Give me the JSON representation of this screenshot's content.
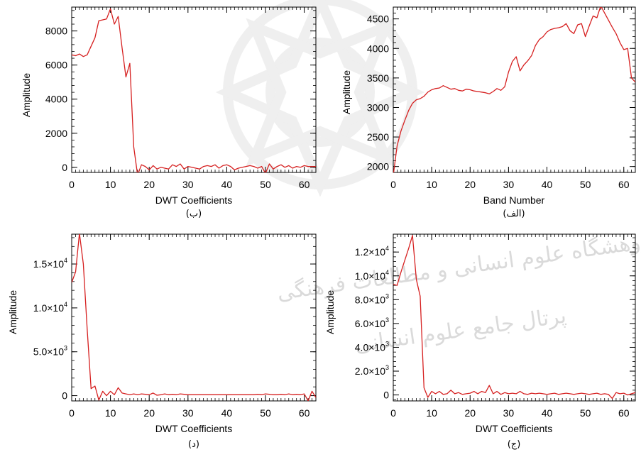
{
  "figure": {
    "panels": [
      {
        "id": "b",
        "caption": "(ب)"
      },
      {
        "id": "alef",
        "caption": "(الف)"
      },
      {
        "id": "d",
        "caption": "(د)"
      },
      {
        "id": "jim",
        "caption": "(ج)"
      }
    ],
    "watermark_text": [
      "پژوهشگاه علوم انسانی و مطالعات فرهنگی",
      "پرتال جامع علوم انسانی"
    ]
  },
  "chart_data": [
    {
      "id": "b",
      "type": "line",
      "xlabel": "DWT Coefficients",
      "ylabel": "Amplitude",
      "xlim": [
        0,
        63
      ],
      "ylim": [
        -300,
        9400
      ],
      "x_ticks": [
        0,
        10,
        20,
        30,
        40,
        50,
        60
      ],
      "y_ticks": [
        {
          "value": 0,
          "label": "0"
        },
        {
          "value": 2000,
          "label": "2000"
        },
        {
          "value": 4000,
          "label": "4000"
        },
        {
          "value": 6000,
          "label": "6000"
        },
        {
          "value": 8000,
          "label": "8000"
        }
      ],
      "line_color": "#d62020",
      "grid": false,
      "series": [
        {
          "x": [
            0,
            1,
            2,
            3,
            4,
            5,
            6,
            7,
            8,
            9,
            10,
            11,
            12,
            13,
            14,
            15,
            16,
            17,
            18,
            19,
            20,
            21,
            22,
            23,
            24,
            25,
            26,
            27,
            28,
            29,
            30,
            31,
            32,
            33,
            34,
            35,
            36,
            37,
            38,
            39,
            40,
            41,
            42,
            43,
            44,
            45,
            46,
            47,
            48,
            49,
            50,
            51,
            52,
            53,
            54,
            55,
            56,
            57,
            58,
            59,
            60,
            61,
            62,
            63
          ],
          "y": [
            6600,
            6550,
            6650,
            6500,
            6600,
            7100,
            7600,
            8600,
            8650,
            8700,
            9300,
            8400,
            8850,
            7000,
            5300,
            6100,
            1200,
            -450,
            150,
            50,
            -150,
            100,
            -100,
            0,
            -50,
            -100,
            150,
            50,
            200,
            -100,
            50,
            0,
            -50,
            -100,
            50,
            100,
            50,
            150,
            -50,
            100,
            150,
            50,
            -150,
            -50,
            0,
            50,
            100,
            50,
            -50,
            50,
            -350,
            200,
            -100,
            50,
            150,
            0,
            100,
            -50,
            50,
            0,
            100,
            50,
            50,
            50
          ]
        }
      ]
    },
    {
      "id": "alef",
      "type": "line",
      "xlabel": "Band Number",
      "ylabel": "Amplitude",
      "xlim": [
        0,
        63
      ],
      "ylim": [
        1900,
        4700
      ],
      "x_ticks": [
        0,
        10,
        20,
        30,
        40,
        50,
        60
      ],
      "y_ticks": [
        {
          "value": 2000,
          "label": "2000"
        },
        {
          "value": 2500,
          "label": "2500"
        },
        {
          "value": 3000,
          "label": "3000"
        },
        {
          "value": 3500,
          "label": "3500"
        },
        {
          "value": 4000,
          "label": "4000"
        },
        {
          "value": 4500,
          "label": "4500"
        }
      ],
      "line_color": "#d62020",
      "grid": false,
      "series": [
        {
          "x": [
            0,
            1,
            2,
            3,
            4,
            5,
            6,
            7,
            8,
            9,
            10,
            11,
            12,
            13,
            14,
            15,
            16,
            17,
            18,
            19,
            20,
            21,
            22,
            23,
            24,
            25,
            26,
            27,
            28,
            29,
            30,
            31,
            32,
            33,
            34,
            35,
            36,
            37,
            38,
            39,
            40,
            41,
            42,
            43,
            44,
            45,
            46,
            47,
            48,
            49,
            50,
            51,
            52,
            53,
            54,
            55,
            56,
            57,
            58,
            59,
            60,
            61,
            62,
            63
          ],
          "y": [
            1850,
            2350,
            2600,
            2780,
            2950,
            3070,
            3130,
            3150,
            3190,
            3260,
            3300,
            3320,
            3330,
            3370,
            3340,
            3310,
            3320,
            3290,
            3280,
            3310,
            3300,
            3280,
            3270,
            3260,
            3250,
            3230,
            3270,
            3320,
            3290,
            3350,
            3600,
            3780,
            3860,
            3620,
            3720,
            3790,
            3880,
            4050,
            4150,
            4200,
            4280,
            4320,
            4340,
            4350,
            4370,
            4420,
            4300,
            4250,
            4400,
            4420,
            4200,
            4380,
            4550,
            4520,
            4720,
            4600,
            4480,
            4360,
            4250,
            4100,
            3980,
            4000,
            3500,
            3430
          ]
        }
      ]
    },
    {
      "id": "d",
      "type": "line",
      "xlabel": "DWT Coefficients",
      "ylabel": "Amplitude",
      "xlim": [
        0,
        63
      ],
      "ylim": [
        -600,
        18400
      ],
      "x_ticks": [
        0,
        10,
        20,
        30,
        40,
        50,
        60
      ],
      "y_ticks": [
        {
          "value": 0,
          "label": "0",
          "mantissa": "",
          "exponent": ""
        },
        {
          "value": 5000,
          "label": "5.0×10^3",
          "mantissa": "5.0×10",
          "exponent": "3"
        },
        {
          "value": 10000,
          "label": "1.0×10^4",
          "mantissa": "1.0×10",
          "exponent": "4"
        },
        {
          "value": 15000,
          "label": "1.5×10^4",
          "mantissa": "1.5×10",
          "exponent": "4"
        }
      ],
      "line_color": "#d62020",
      "grid": false,
      "series": [
        {
          "x": [
            0,
            1,
            2,
            3,
            4,
            5,
            6,
            7,
            8,
            9,
            10,
            11,
            12,
            13,
            14,
            15,
            16,
            17,
            18,
            19,
            20,
            21,
            22,
            23,
            24,
            25,
            26,
            27,
            28,
            29,
            30,
            31,
            32,
            33,
            34,
            35,
            36,
            37,
            38,
            39,
            40,
            41,
            42,
            43,
            44,
            45,
            46,
            47,
            48,
            49,
            50,
            51,
            52,
            53,
            54,
            55,
            56,
            57,
            58,
            59,
            60,
            61,
            62,
            63
          ],
          "y": [
            12900,
            14100,
            18500,
            15000,
            7600,
            800,
            1100,
            -500,
            500,
            0,
            500,
            100,
            900,
            300,
            200,
            100,
            200,
            100,
            200,
            150,
            100,
            300,
            50,
            100,
            200,
            100,
            150,
            100,
            200,
            150,
            100,
            100,
            100,
            100,
            100,
            100,
            100,
            100,
            100,
            100,
            100,
            100,
            100,
            100,
            100,
            100,
            100,
            100,
            150,
            100,
            200,
            150,
            100,
            100,
            150,
            100,
            200,
            100,
            150,
            100,
            200,
            -600,
            500,
            -200
          ]
        }
      ]
    },
    {
      "id": "jim",
      "type": "line",
      "xlabel": "DWT Coefficients",
      "ylabel": "Amplitude",
      "xlim": [
        0,
        63
      ],
      "ylim": [
        -500,
        13500
      ],
      "x_ticks": [
        0,
        10,
        20,
        30,
        40,
        50,
        60
      ],
      "y_ticks": [
        {
          "value": 0,
          "label": "0",
          "mantissa": "",
          "exponent": ""
        },
        {
          "value": 2000,
          "label": "2.0×10^3",
          "mantissa": "2.0×10",
          "exponent": "3"
        },
        {
          "value": 4000,
          "label": "4.0×10^3",
          "mantissa": "4.0×10",
          "exponent": "3"
        },
        {
          "value": 6000,
          "label": "6.0×10^3",
          "mantissa": "6.0×10",
          "exponent": "3"
        },
        {
          "value": 8000,
          "label": "8.0×10^3",
          "mantissa": "8.0×10",
          "exponent": "3"
        },
        {
          "value": 10000,
          "label": "1.0×10^4",
          "mantissa": "1.0×10",
          "exponent": "4"
        },
        {
          "value": 12000,
          "label": "1.2×10^4",
          "mantissa": "1.2×10",
          "exponent": "4"
        }
      ],
      "line_color": "#d62020",
      "grid": false,
      "series": [
        {
          "x": [
            0,
            1,
            2,
            3,
            4,
            5,
            6,
            7,
            8,
            9,
            10,
            11,
            12,
            13,
            14,
            15,
            16,
            17,
            18,
            19,
            20,
            21,
            22,
            23,
            24,
            25,
            26,
            27,
            28,
            29,
            30,
            31,
            32,
            33,
            34,
            35,
            36,
            37,
            38,
            39,
            40,
            41,
            42,
            43,
            44,
            45,
            46,
            47,
            48,
            49,
            50,
            51,
            52,
            53,
            54,
            55,
            56,
            57,
            58,
            59,
            60,
            61,
            62,
            63
          ],
          "y": [
            9300,
            9200,
            10300,
            11300,
            12300,
            13400,
            9700,
            8300,
            600,
            -200,
            300,
            100,
            300,
            50,
            100,
            400,
            100,
            200,
            50,
            100,
            150,
            300,
            100,
            300,
            200,
            800,
            100,
            300,
            50,
            200,
            100,
            150,
            100,
            300,
            100,
            50,
            150,
            100,
            150,
            100,
            50,
            100,
            150,
            50,
            100,
            150,
            100,
            50,
            100,
            150,
            100,
            50,
            100,
            150,
            50,
            100,
            50,
            -300,
            200,
            100,
            150,
            0,
            100,
            200
          ]
        }
      ]
    }
  ]
}
